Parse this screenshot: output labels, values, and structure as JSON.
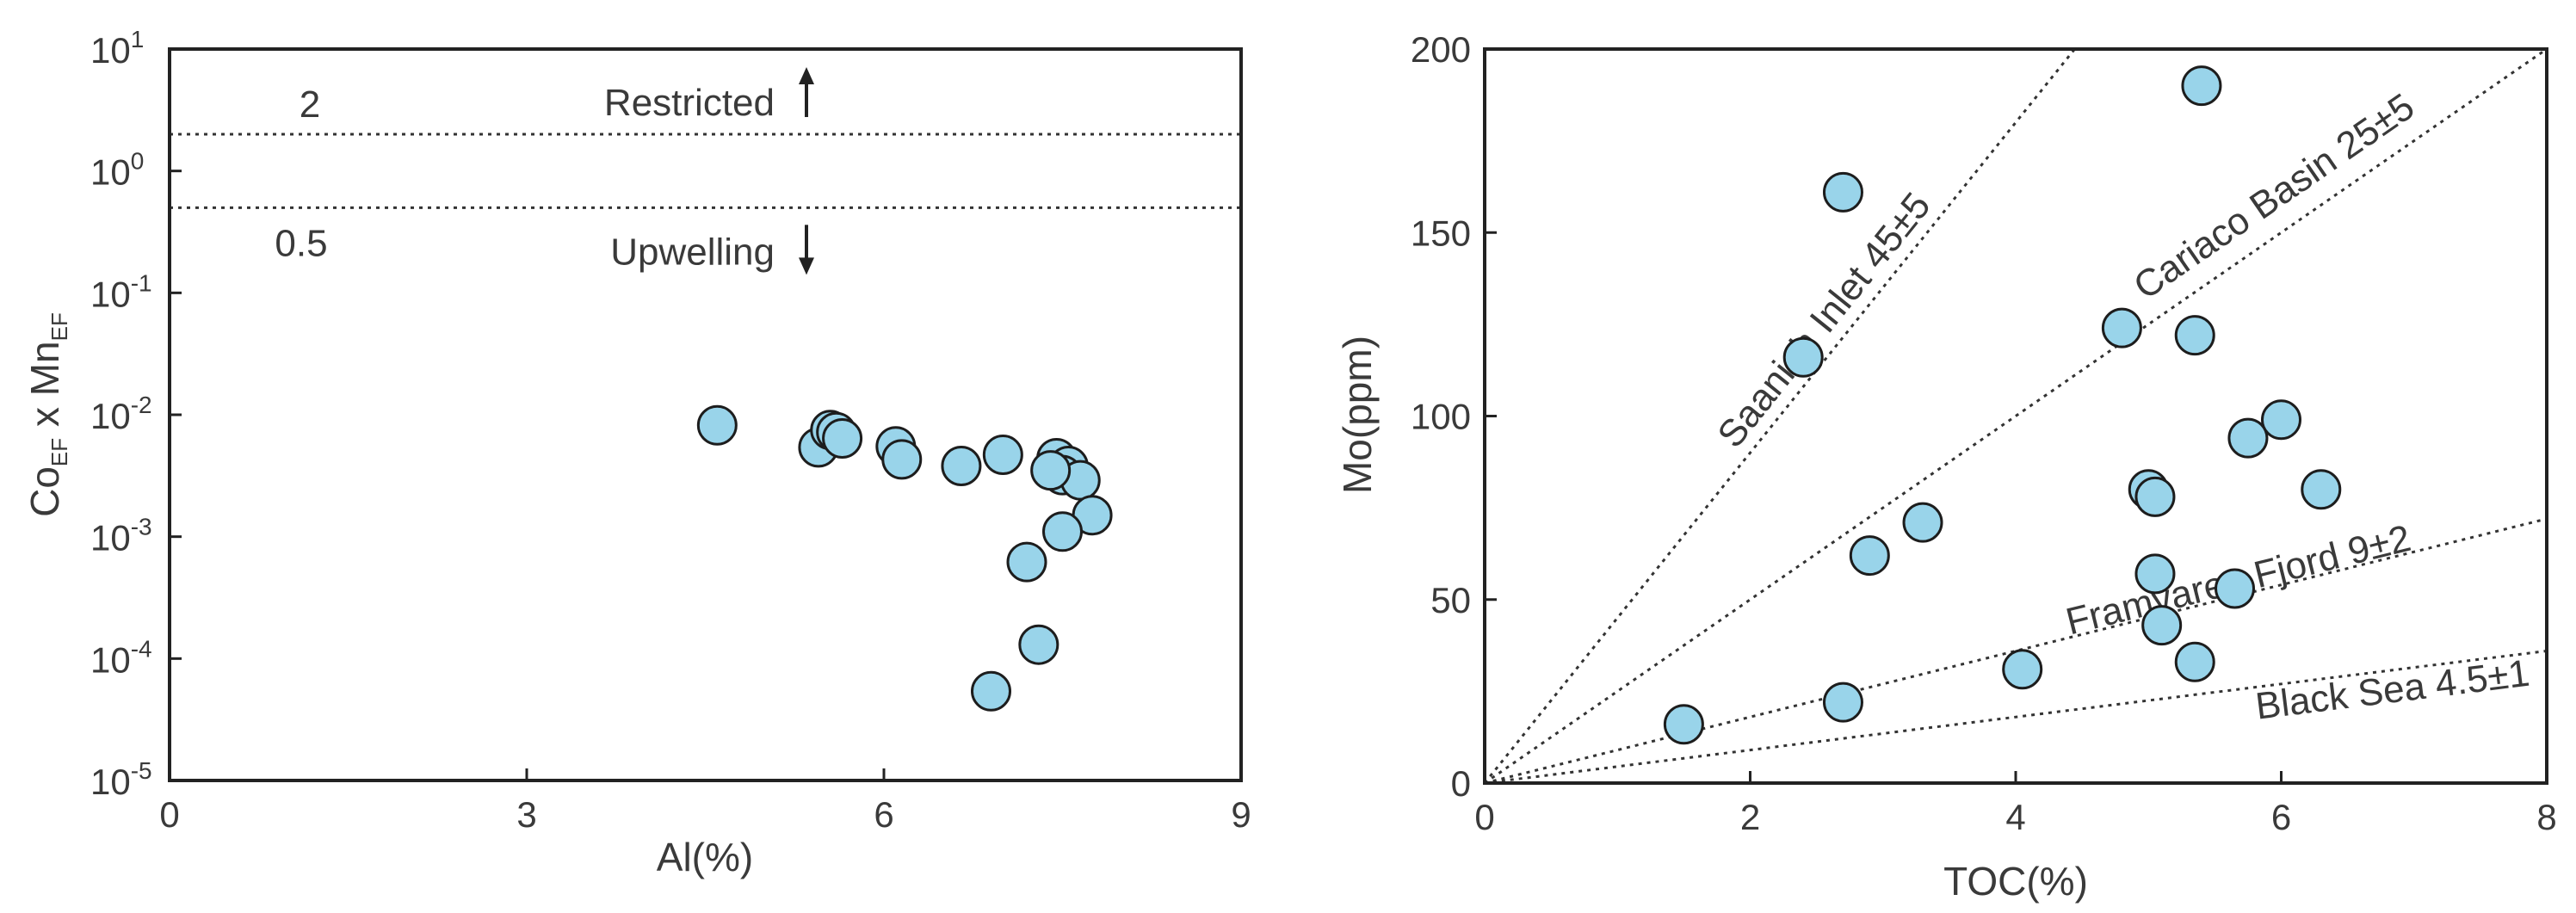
{
  "colors": {
    "point_fill": "#99d4ea",
    "point_stroke": "#1d1d1d",
    "axis": "#222222"
  },
  "chart_data": [
    {
      "type": "scatter",
      "title": "",
      "xlabel": "Al(%)",
      "ylabel": {
        "base": "Co",
        "sub1": "EF",
        "mid": " x Mn",
        "sub2": "EF"
      },
      "xlim": [
        0,
        9
      ],
      "xticks": [
        "0",
        "3",
        "6",
        "9"
      ],
      "ylim": [
        1e-05,
        10
      ],
      "yscale": "log",
      "yticks": [
        {
          "value": 10,
          "base": "10",
          "exp": "1"
        },
        {
          "value": 1,
          "base": "10",
          "exp": "0"
        },
        {
          "value": 0.1,
          "base": "10",
          "exp": "-1"
        },
        {
          "value": 0.01,
          "base": "10",
          "exp": "-2"
        },
        {
          "value": 0.001,
          "base": "10",
          "exp": "-3"
        },
        {
          "value": 0.0001,
          "base": "10",
          "exp": "-4"
        },
        {
          "value": 1e-05,
          "base": "10",
          "exp": "-5"
        }
      ],
      "grid": false,
      "reference_lines": [
        {
          "y": 2,
          "label": "2",
          "zone_label": "Restricted",
          "direction": "up"
        },
        {
          "y": 0.5,
          "label": "0.5",
          "zone_label": "Upwelling",
          "direction": "down"
        }
      ],
      "points": [
        {
          "x": 4.6,
          "y": 0.0082
        },
        {
          "x": 5.45,
          "y": 0.0054
        },
        {
          "x": 5.55,
          "y": 0.0075
        },
        {
          "x": 5.6,
          "y": 0.0072
        },
        {
          "x": 5.65,
          "y": 0.0064
        },
        {
          "x": 6.1,
          "y": 0.0055
        },
        {
          "x": 6.15,
          "y": 0.0043
        },
        {
          "x": 6.65,
          "y": 0.0038
        },
        {
          "x": 7.0,
          "y": 0.0047
        },
        {
          "x": 7.45,
          "y": 0.0044
        },
        {
          "x": 7.55,
          "y": 0.0038
        },
        {
          "x": 7.5,
          "y": 0.0032
        },
        {
          "x": 7.65,
          "y": 0.0029
        },
        {
          "x": 7.4,
          "y": 0.0035
        },
        {
          "x": 7.75,
          "y": 0.0015
        },
        {
          "x": 7.5,
          "y": 0.0011
        },
        {
          "x": 7.2,
          "y": 0.00062
        },
        {
          "x": 7.3,
          "y": 0.00013
        },
        {
          "x": 6.9,
          "y": 5.4e-05
        }
      ]
    },
    {
      "type": "scatter",
      "title": "",
      "xlabel": "TOC(%)",
      "ylabel": "Mo(ppm)",
      "xlim": [
        0,
        8
      ],
      "xticks": [
        0,
        2,
        4,
        6,
        8
      ],
      "ylim": [
        0,
        200
      ],
      "yticks": [
        0,
        50,
        100,
        150,
        200
      ],
      "grid": false,
      "reference_lines": [
        {
          "slope": 45,
          "label": "Saanich Inlet 45±5"
        },
        {
          "slope": 25,
          "label": "Cariaco Basin 25±5"
        },
        {
          "slope": 9,
          "label": "Framvaren Fjord 9±2"
        },
        {
          "slope": 4.5,
          "label": "Black Sea 4.5±1"
        }
      ],
      "points": [
        {
          "x": 2.7,
          "y": 161
        },
        {
          "x": 5.4,
          "y": 190
        },
        {
          "x": 2.4,
          "y": 116
        },
        {
          "x": 4.8,
          "y": 124
        },
        {
          "x": 5.35,
          "y": 122
        },
        {
          "x": 5.75,
          "y": 94
        },
        {
          "x": 6.0,
          "y": 99
        },
        {
          "x": 6.3,
          "y": 80
        },
        {
          "x": 5.0,
          "y": 80
        },
        {
          "x": 5.05,
          "y": 78
        },
        {
          "x": 3.3,
          "y": 71
        },
        {
          "x": 2.9,
          "y": 62
        },
        {
          "x": 5.05,
          "y": 57
        },
        {
          "x": 5.65,
          "y": 53
        },
        {
          "x": 5.1,
          "y": 43
        },
        {
          "x": 5.35,
          "y": 33
        },
        {
          "x": 4.05,
          "y": 31
        },
        {
          "x": 2.7,
          "y": 22
        },
        {
          "x": 1.5,
          "y": 16
        }
      ]
    }
  ]
}
